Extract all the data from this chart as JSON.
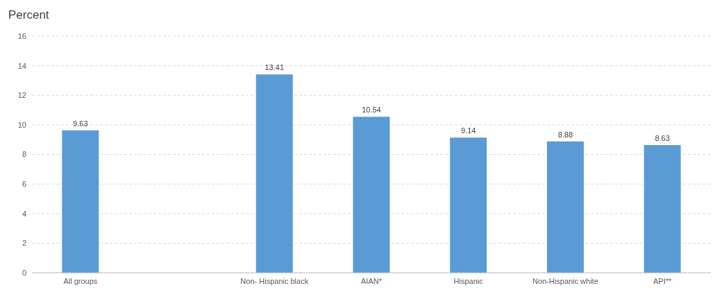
{
  "chart_data": {
    "type": "bar",
    "ylabel": "Percent",
    "categories": [
      "All groups",
      null,
      "Non- Hispanic black",
      "AIAN*",
      "Hispanic",
      "Non-Hispanic white",
      "API**"
    ],
    "values": [
      9.63,
      null,
      13.41,
      10.54,
      9.14,
      8.88,
      8.63
    ],
    "color": "#5b9bd5",
    "ylim": [
      0,
      16
    ],
    "yticks": [
      0,
      2,
      4,
      6,
      8,
      10,
      12,
      14,
      16
    ],
    "grid": "y",
    "data_labels": true
  }
}
